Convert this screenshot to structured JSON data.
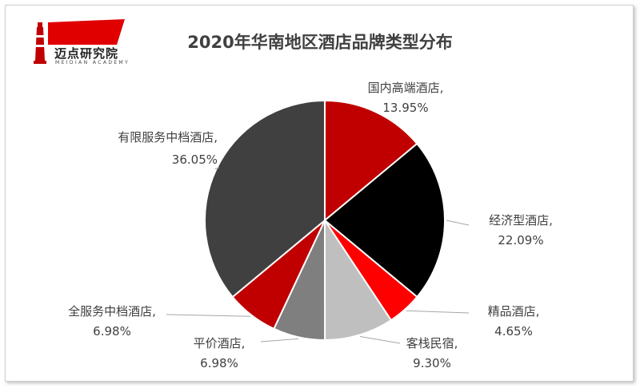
{
  "logo": {
    "text": "迈点研究院",
    "subtitle": "MEIDIAN ACADEMY"
  },
  "chart_data": {
    "type": "pie",
    "title": "2020年华南地区酒店品牌类型分布",
    "slices": [
      {
        "label": "国内高端酒店",
        "value": 13.95,
        "value_label": "13.95%",
        "color": "#c00000"
      },
      {
        "label": "经济型酒店",
        "value": 22.09,
        "value_label": "22.09%",
        "color": "#000000"
      },
      {
        "label": "精品酒店",
        "value": 4.65,
        "value_label": "4.65%",
        "color": "#ff0000"
      },
      {
        "label": "客栈民宿",
        "value": 9.3,
        "value_label": "9.30%",
        "color": "#bfbfbf"
      },
      {
        "label": "平价酒店",
        "value": 6.98,
        "value_label": "6.98%",
        "color": "#7f7f7f"
      },
      {
        "label": "全服务中档酒店",
        "value": 6.98,
        "value_label": "6.98%",
        "color": "#c00000"
      },
      {
        "label": "有限服务中档酒店",
        "value": 36.05,
        "value_label": "36.05%",
        "color": "#404040"
      }
    ],
    "start_angle": "12 o'clock",
    "direction": "clockwise",
    "legend": "none",
    "data_labels": "outside with leader lines"
  }
}
